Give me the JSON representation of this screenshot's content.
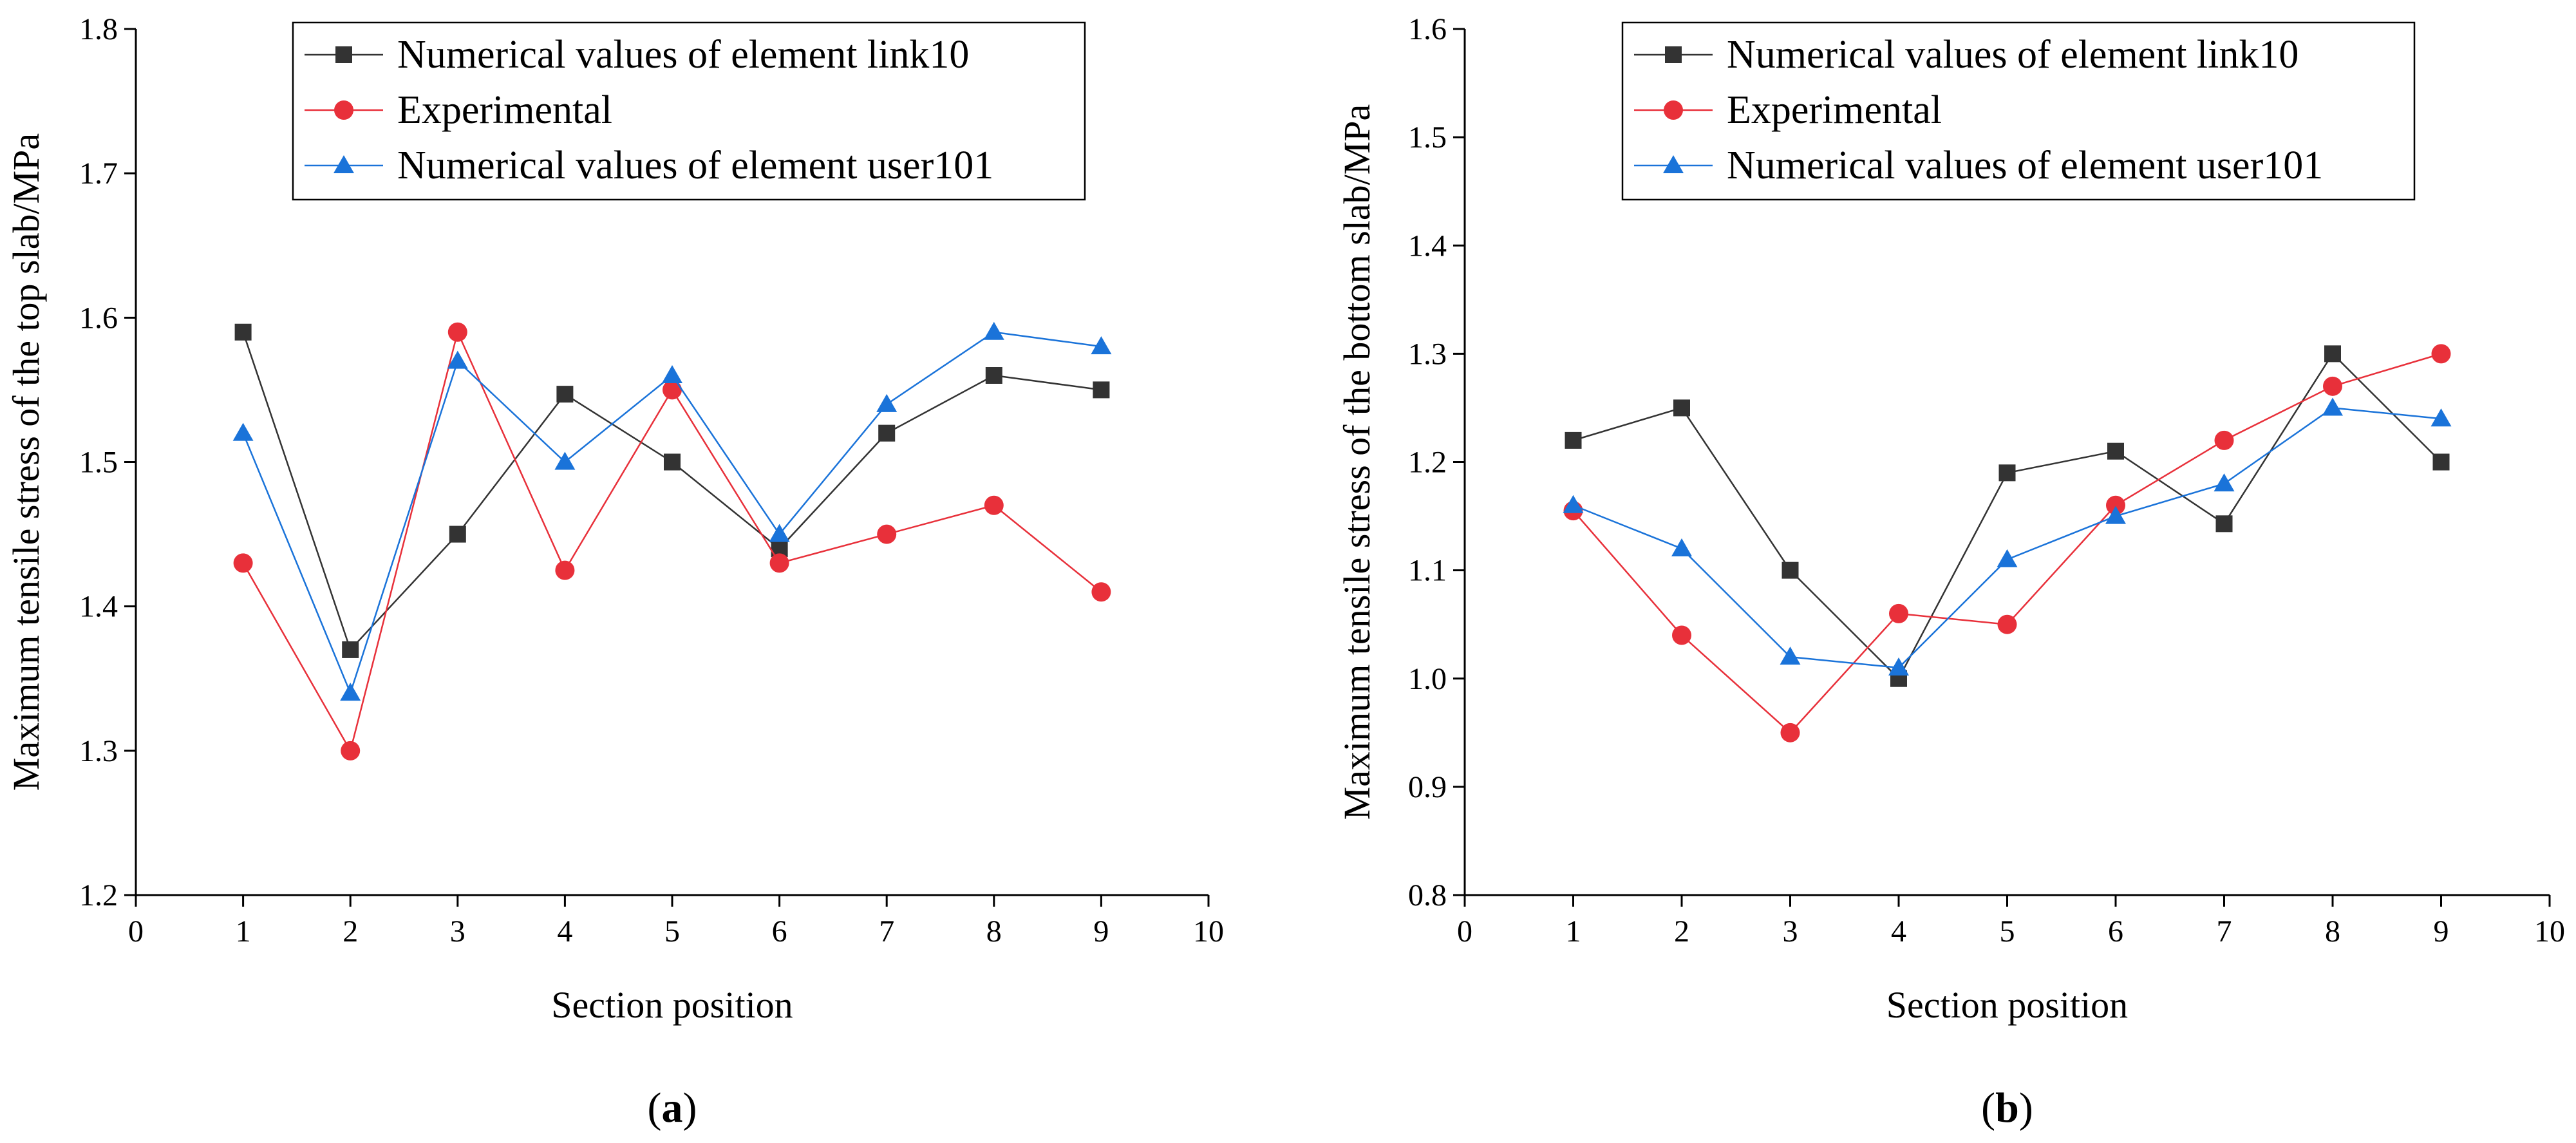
{
  "chart_data": [
    {
      "type": "line",
      "panel_label": "a",
      "xlabel": "Section position",
      "ylabel": "Maximum tensile stress of the top slab/MPa",
      "xlim": [
        0,
        10
      ],
      "ylim": [
        1.2,
        1.8
      ],
      "x_ticks": [
        0,
        1,
        2,
        3,
        4,
        5,
        6,
        7,
        8,
        9,
        10
      ],
      "y_ticks": [
        "1.2",
        "1.3",
        "1.4",
        "1.5",
        "1.6",
        "1.7",
        "1.8"
      ],
      "legend_position": "top-right",
      "x": [
        1,
        2,
        3,
        4,
        5,
        6,
        7,
        8,
        9
      ],
      "series": [
        {
          "name": "Numerical values of element link10",
          "color": "#333333",
          "marker": "square",
          "values": [
            1.59,
            1.37,
            1.45,
            1.547,
            1.5,
            1.44,
            1.52,
            1.56,
            1.55
          ]
        },
        {
          "name": "Experimental",
          "color": "#e8303a",
          "marker": "circle",
          "values": [
            1.43,
            1.3,
            1.59,
            1.425,
            1.55,
            1.43,
            1.45,
            1.47,
            1.41
          ]
        },
        {
          "name": "Numerical values of element user101",
          "color": "#1a73d9",
          "marker": "triangle",
          "values": [
            1.52,
            1.34,
            1.57,
            1.5,
            1.56,
            1.45,
            1.54,
            1.59,
            1.58
          ]
        }
      ]
    },
    {
      "type": "line",
      "panel_label": "b",
      "xlabel": "Section position",
      "ylabel": "Maximum tensile stress of the bottom slab/MPa",
      "xlim": [
        0,
        10
      ],
      "ylim": [
        0.8,
        1.6
      ],
      "x_ticks": [
        0,
        1,
        2,
        3,
        4,
        5,
        6,
        7,
        8,
        9,
        10
      ],
      "y_ticks": [
        "0.8",
        "0.9",
        "1.0",
        "1.1",
        "1.2",
        "1.3",
        "1.4",
        "1.5",
        "1.6"
      ],
      "legend_position": "top-right",
      "x": [
        1,
        2,
        3,
        4,
        5,
        6,
        7,
        8,
        9
      ],
      "series": [
        {
          "name": "Numerical values of element link10",
          "color": "#333333",
          "marker": "square",
          "values": [
            1.22,
            1.25,
            1.1,
            1.0,
            1.19,
            1.21,
            1.143,
            1.3,
            1.2
          ]
        },
        {
          "name": "Experimental",
          "color": "#e8303a",
          "marker": "circle",
          "values": [
            1.155,
            1.04,
            0.95,
            1.06,
            1.05,
            1.16,
            1.22,
            1.27,
            1.3
          ]
        },
        {
          "name": "Numerical values of element user101",
          "color": "#1a73d9",
          "marker": "triangle",
          "values": [
            1.16,
            1.12,
            1.02,
            1.01,
            1.11,
            1.15,
            1.18,
            1.25,
            1.24
          ]
        }
      ]
    }
  ]
}
